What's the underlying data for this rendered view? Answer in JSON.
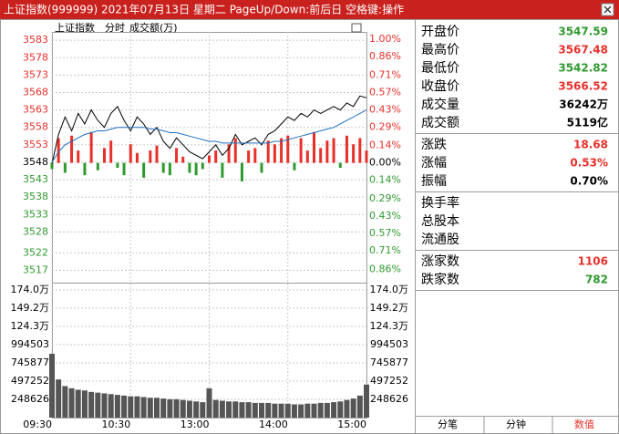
{
  "title_bar": {
    "text": "上证指数(999999)  2021年07月13日 星期二  PageUp/Down:前后日  空格键:操作"
  },
  "chart_data": [
    {
      "type": "line",
      "header": [
        "上证指数",
        "分时",
        "成交额(万)"
      ],
      "x": [
        0,
        5,
        10,
        15,
        20,
        25,
        30,
        35,
        40,
        45,
        50,
        55,
        60,
        65,
        70,
        75,
        80,
        85,
        90,
        95,
        100,
        105,
        110,
        115,
        120,
        125,
        130,
        135,
        140,
        145,
        150,
        155,
        160,
        165,
        170,
        175,
        180,
        185,
        190,
        195,
        200,
        205,
        210,
        215,
        220,
        225,
        230,
        235,
        240
      ],
      "xlim": [
        0,
        240
      ],
      "ylim": [
        3516.6,
        3583.3
      ],
      "yticks": [
        3583,
        3578,
        3573,
        3568,
        3563,
        3558,
        3553,
        3548,
        3543,
        3538,
        3533,
        3528,
        3522,
        3517
      ],
      "y2lim": [
        -0.88,
        1.0
      ],
      "y2ticks": [
        {
          "value": 1.0,
          "label": "1.00%"
        },
        {
          "value": 0.86,
          "label": "0.86%"
        },
        {
          "value": 0.71,
          "label": "0.71%"
        },
        {
          "value": 0.57,
          "label": "0.57%"
        },
        {
          "value": 0.43,
          "label": "0.43%"
        },
        {
          "value": 0.29,
          "label": "0.29%"
        },
        {
          "value": 0.14,
          "label": "0.14%"
        },
        {
          "value": 0,
          "label": "0.00%"
        },
        {
          "value": -0.14,
          "label": "0.14%"
        },
        {
          "value": -0.29,
          "label": "0.29%"
        },
        {
          "value": -0.43,
          "label": "0.43%"
        },
        {
          "value": -0.57,
          "label": "0.57%"
        },
        {
          "value": -0.71,
          "label": "0.71%"
        },
        {
          "value": -0.86,
          "label": "0.86%"
        }
      ],
      "up_color": "#e8302a",
      "down_color": "#2f9a2f",
      "grid": true,
      "series": [
        {
          "color": "#000000",
          "values": [
            3547.6,
            3556,
            3561,
            3557,
            3562,
            3559,
            3563,
            3560,
            3558,
            3562,
            3564,
            3560,
            3557,
            3561,
            3559,
            3556,
            3558,
            3554,
            3552,
            3555,
            3553,
            3551,
            3550,
            3549,
            3551,
            3553,
            3550,
            3552,
            3556,
            3553,
            3554,
            3555,
            3553,
            3556,
            3557,
            3559,
            3561,
            3560,
            3562,
            3561,
            3563,
            3562,
            3563,
            3564,
            3563,
            3565,
            3564,
            3567,
            3566.5
          ]
        },
        {
          "color": "#1f6fbf",
          "values": [
            3548,
            3551,
            3553,
            3554,
            3555,
            3556,
            3556.5,
            3557,
            3557,
            3557.5,
            3558,
            3558,
            3558,
            3558,
            3558,
            3557.5,
            3557.5,
            3557,
            3556.5,
            3556.5,
            3556,
            3555.5,
            3555,
            3554.5,
            3554,
            3554,
            3553.5,
            3553.5,
            3553.5,
            3553.5,
            3553.5,
            3553.5,
            3553.5,
            3553.5,
            3554,
            3554,
            3554.5,
            3555,
            3555.5,
            3556,
            3556.5,
            3557,
            3557.5,
            3558,
            3559,
            3560,
            3561,
            3562,
            3563
          ]
        },
        {
          "type": "bar",
          "axis": "y2",
          "values": [
            -0.05,
            0.2,
            -0.08,
            0.22,
            0.1,
            -0.1,
            0.25,
            -0.06,
            0.12,
            0.18,
            -0.04,
            -0.1,
            0.15,
            0.08,
            -0.12,
            0.1,
            0.14,
            -0.08,
            -0.1,
            0.12,
            0.05,
            -0.08,
            -0.1,
            -0.05,
            0.06,
            0.1,
            -0.12,
            0.15,
            0.2,
            -0.15,
            0.1,
            0.12,
            -0.08,
            0.18,
            0.15,
            0.2,
            0.22,
            -0.06,
            0.2,
            0.1,
            0.25,
            0.12,
            0.18,
            0.2,
            -0.04,
            0.22,
            0.15,
            0.2,
            0.1
          ]
        }
      ]
    },
    {
      "type": "bar",
      "color": "#555555",
      "x": [
        0,
        5,
        10,
        15,
        20,
        25,
        30,
        35,
        40,
        45,
        50,
        55,
        60,
        65,
        70,
        75,
        80,
        85,
        90,
        95,
        100,
        105,
        110,
        115,
        120,
        125,
        130,
        135,
        140,
        145,
        150,
        155,
        160,
        165,
        170,
        175,
        180,
        185,
        190,
        195,
        200,
        205,
        210,
        215,
        220,
        225,
        230,
        235,
        240
      ],
      "xlim": [
        0,
        240
      ],
      "xticks": [
        {
          "value": 0,
          "label": "09:30"
        },
        {
          "value": 60,
          "label": "10:30"
        },
        {
          "value": 120,
          "label": "13:00"
        },
        {
          "value": 180,
          "label": "14:00"
        },
        {
          "value": 240,
          "label": "15:00"
        }
      ],
      "ylim": [
        0,
        1740382
      ],
      "yticks": [
        {
          "value": 1740382,
          "label": "174.0万"
        },
        {
          "value": 1491756,
          "label": "149.2万"
        },
        {
          "value": 1243130,
          "label": "124.3万"
        },
        994503,
        745877,
        497252,
        248626
      ],
      "values": [
        870000,
        520000,
        430000,
        400000,
        380000,
        370000,
        350000,
        340000,
        330000,
        320000,
        310000,
        300000,
        290000,
        290000,
        280000,
        270000,
        270000,
        260000,
        250000,
        250000,
        240000,
        230000,
        220000,
        210000,
        400000,
        240000,
        230000,
        220000,
        220000,
        210000,
        210000,
        200000,
        200000,
        200000,
        190000,
        190000,
        190000,
        180000,
        180000,
        190000,
        190000,
        200000,
        200000,
        210000,
        220000,
        240000,
        260000,
        300000,
        450000
      ]
    }
  ],
  "panel": {
    "groups": [
      [
        {
          "label": "开盘价",
          "value": "3547.59",
          "color": "#2f9a2f"
        },
        {
          "label": "最高价",
          "value": "3567.48",
          "color": "#e8302a"
        },
        {
          "label": "最低价",
          "value": "3542.82",
          "color": "#2f9a2f"
        },
        {
          "label": "收盘价",
          "value": "3566.52",
          "color": "#e8302a"
        },
        {
          "label": "成交量",
          "value": "36242万",
          "color": "#000000"
        },
        {
          "label": "成交额",
          "value": "5119亿",
          "color": "#000000"
        }
      ],
      [
        {
          "label": "涨跌",
          "value": "18.68",
          "color": "#e8302a"
        },
        {
          "label": "涨幅",
          "value": "0.53%",
          "color": "#e8302a"
        },
        {
          "label": "振幅",
          "value": "0.70%",
          "color": "#000000"
        }
      ],
      [
        {
          "label": "换手率"
        },
        {
          "label": "总股本"
        },
        {
          "label": "流通股"
        }
      ],
      [
        {
          "label": "涨家数",
          "value": "1106",
          "color": "#e8302a"
        },
        {
          "label": "跌家数",
          "value": "782",
          "color": "#2f9a2f"
        }
      ]
    ],
    "tabs": [
      "分笔",
      "分钟",
      "数值"
    ]
  }
}
